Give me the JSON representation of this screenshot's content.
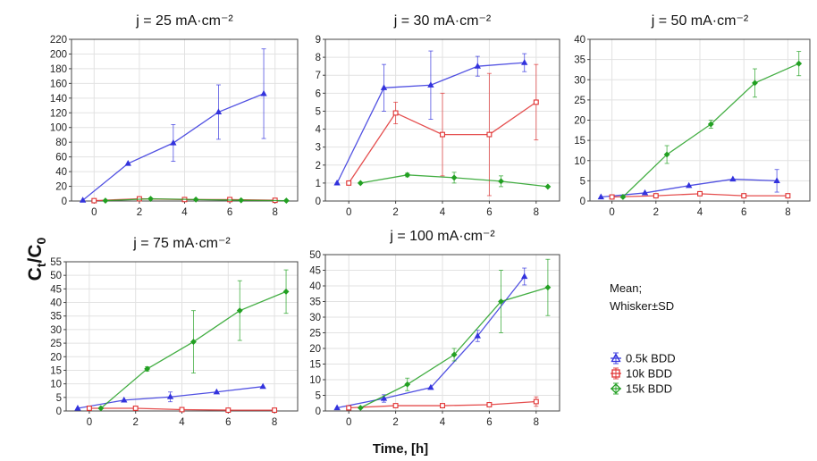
{
  "figure": {
    "ylabel_main": "C",
    "ylabel_sub1": "t",
    "ylabel_slash": "/C",
    "ylabel_sub2": "0",
    "xlabel": "Time, [h]",
    "note_line1": "Mean;",
    "note_line2": "Whisker±SD"
  },
  "legend": [
    {
      "name": "0.5k BDD",
      "color": "#3333dd",
      "marker": "triangle"
    },
    {
      "name": "10k BDD",
      "color": "#e03030",
      "marker": "square"
    },
    {
      "name": "15k BDD",
      "color": "#22a022",
      "marker": "diamond"
    }
  ],
  "chart_data": [
    {
      "type": "line",
      "title": "j = 25 mA·cm⁻²",
      "xlim": [
        -1,
        9
      ],
      "ylim": [
        0,
        220
      ],
      "xticks": [
        0,
        2,
        4,
        6,
        8
      ],
      "yticks": [
        0,
        20,
        40,
        60,
        80,
        100,
        120,
        140,
        160,
        180,
        200,
        220
      ],
      "series": [
        {
          "name": "0.5k BDD",
          "x": [
            -0.5,
            1.5,
            3.5,
            5.5,
            7.5
          ],
          "y": [
            1,
            51,
            79,
            121,
            146
          ],
          "err": [
            0,
            0,
            25,
            37,
            61
          ]
        },
        {
          "name": "10k BDD",
          "x": [
            0,
            2,
            4,
            6,
            8
          ],
          "y": [
            0.5,
            3,
            2,
            2,
            1
          ],
          "err": [
            0,
            0,
            0,
            0,
            0
          ]
        },
        {
          "name": "15k BDD",
          "x": [
            0.5,
            2.5,
            4.5,
            6.5,
            8.5
          ],
          "y": [
            0.5,
            3,
            2,
            1,
            0.5
          ],
          "err": [
            0,
            0,
            0,
            0,
            0
          ]
        }
      ]
    },
    {
      "type": "line",
      "title": "j = 30 mA·cm⁻²",
      "xlim": [
        -1,
        9
      ],
      "ylim": [
        0,
        9
      ],
      "xticks": [
        0,
        2,
        4,
        6,
        8
      ],
      "yticks": [
        0,
        1,
        2,
        3,
        4,
        5,
        6,
        7,
        8,
        9
      ],
      "series": [
        {
          "name": "0.5k BDD",
          "x": [
            -0.5,
            1.5,
            3.5,
            5.5,
            7.5
          ],
          "y": [
            1,
            6.3,
            6.45,
            7.5,
            7.7
          ],
          "err": [
            0,
            1.3,
            1.9,
            0.55,
            0.5
          ]
        },
        {
          "name": "10k BDD",
          "x": [
            0,
            2,
            4,
            6,
            8
          ],
          "y": [
            1,
            4.9,
            3.7,
            3.7,
            5.5
          ],
          "err": [
            0,
            0.6,
            2.3,
            3.4,
            2.1
          ]
        },
        {
          "name": "15k BDD",
          "x": [
            0.5,
            2.5,
            4.5,
            6.5,
            8.5
          ],
          "y": [
            1,
            1.45,
            1.3,
            1.1,
            0.8
          ],
          "err": [
            0,
            0.1,
            0.3,
            0.3,
            0
          ]
        }
      ]
    },
    {
      "type": "line",
      "title": "j = 50 mA·cm⁻²",
      "xlim": [
        -1,
        9
      ],
      "ylim": [
        0,
        40
      ],
      "xticks": [
        0,
        2,
        4,
        6,
        8
      ],
      "yticks": [
        0,
        5,
        10,
        15,
        20,
        25,
        30,
        35,
        40
      ],
      "series": [
        {
          "name": "0.5k BDD",
          "x": [
            -0.5,
            1.5,
            3.5,
            5.5,
            7.5
          ],
          "y": [
            1,
            2,
            3.8,
            5.4,
            5
          ],
          "err": [
            0,
            0,
            0,
            0,
            2.8
          ]
        },
        {
          "name": "10k BDD",
          "x": [
            0,
            2,
            4,
            6,
            8
          ],
          "y": [
            1,
            1.3,
            1.8,
            1.3,
            1.3
          ],
          "err": [
            0,
            0,
            0.3,
            0,
            0
          ]
        },
        {
          "name": "15k BDD",
          "x": [
            0.5,
            2.5,
            4.5,
            6.5,
            8.5
          ],
          "y": [
            1,
            11.5,
            19,
            29.2,
            34
          ],
          "err": [
            0,
            2.2,
            1,
            3.5,
            3
          ]
        }
      ]
    },
    {
      "type": "line",
      "title": "j = 75 mA·cm⁻²",
      "xlim": [
        -1,
        9
      ],
      "ylim": [
        0,
        55
      ],
      "xticks": [
        0,
        2,
        4,
        6,
        8
      ],
      "yticks": [
        0,
        5,
        10,
        15,
        20,
        25,
        30,
        35,
        40,
        45,
        50,
        55
      ],
      "series": [
        {
          "name": "0.5k BDD",
          "x": [
            -0.5,
            1.5,
            3.5,
            5.5,
            7.5
          ],
          "y": [
            1,
            4,
            5.2,
            7,
            9
          ],
          "err": [
            0,
            0,
            1.8,
            0,
            0
          ]
        },
        {
          "name": "10k BDD",
          "x": [
            0,
            2,
            4,
            6,
            8
          ],
          "y": [
            1,
            1,
            0.5,
            0.3,
            0.3
          ],
          "err": [
            0,
            0,
            0,
            0,
            0
          ]
        },
        {
          "name": "15k BDD",
          "x": [
            0.5,
            2.5,
            4.5,
            6.5,
            8.5
          ],
          "y": [
            1,
            15.5,
            25.5,
            37,
            44
          ],
          "err": [
            0,
            0.8,
            11.5,
            11,
            8
          ]
        }
      ]
    },
    {
      "type": "line",
      "title": "j = 100 mA·cm⁻²",
      "xlim": [
        -1,
        9
      ],
      "ylim": [
        0,
        50
      ],
      "xticks": [
        0,
        2,
        4,
        6,
        8
      ],
      "yticks": [
        0,
        5,
        10,
        15,
        20,
        25,
        30,
        35,
        40,
        45,
        50
      ],
      "series": [
        {
          "name": "0.5k BDD",
          "x": [
            -0.5,
            1.5,
            3.5,
            5.5,
            7.5
          ],
          "y": [
            1,
            4,
            7.5,
            24,
            43
          ],
          "err": [
            0,
            1.2,
            0,
            1.8,
            2.7
          ]
        },
        {
          "name": "10k BDD",
          "x": [
            0,
            2,
            4,
            6,
            8
          ],
          "y": [
            1,
            1.7,
            1.7,
            2,
            3
          ],
          "err": [
            0,
            0,
            0,
            0,
            1.5
          ]
        },
        {
          "name": "15k BDD",
          "x": [
            0.5,
            2.5,
            4.5,
            6.5,
            8.5
          ],
          "y": [
            1,
            8.5,
            18,
            35,
            39.5
          ],
          "err": [
            0,
            2,
            2,
            10,
            9
          ]
        }
      ]
    }
  ]
}
